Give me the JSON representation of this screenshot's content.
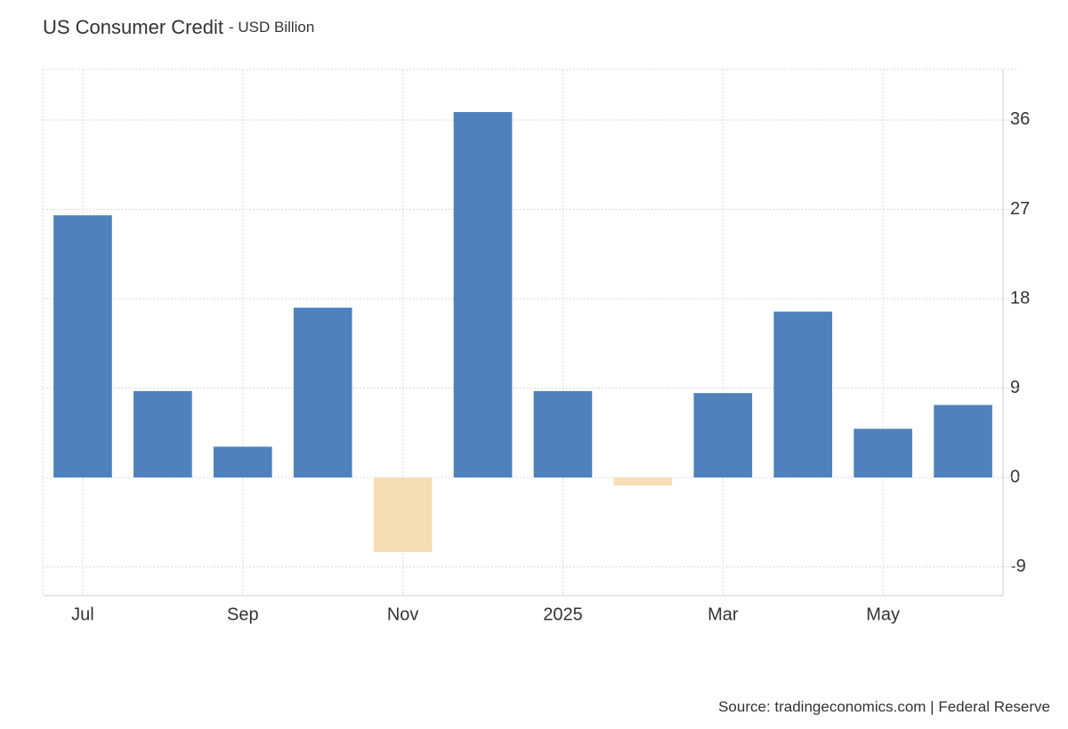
{
  "chart_data": {
    "type": "bar",
    "title": "US Consumer Credit",
    "subtitle": "- USD Billion",
    "categories": [
      "Jul",
      null,
      "Sep",
      null,
      "Nov",
      null,
      "2025",
      null,
      "Mar",
      null,
      "May",
      null
    ],
    "values": [
      26.4,
      8.7,
      3.1,
      17.1,
      -7.5,
      36.8,
      8.7,
      -0.8,
      8.5,
      16.7,
      4.9,
      7.3
    ],
    "color": "#4f81bd",
    "negative_color": "#f5deb3",
    "ylim": [
      -11.9,
      41.1
    ],
    "yticks": [
      -9,
      0,
      9,
      18,
      27,
      36
    ],
    "grid": true,
    "source": "Source: tradingeconomics.com | Federal Reserve"
  }
}
